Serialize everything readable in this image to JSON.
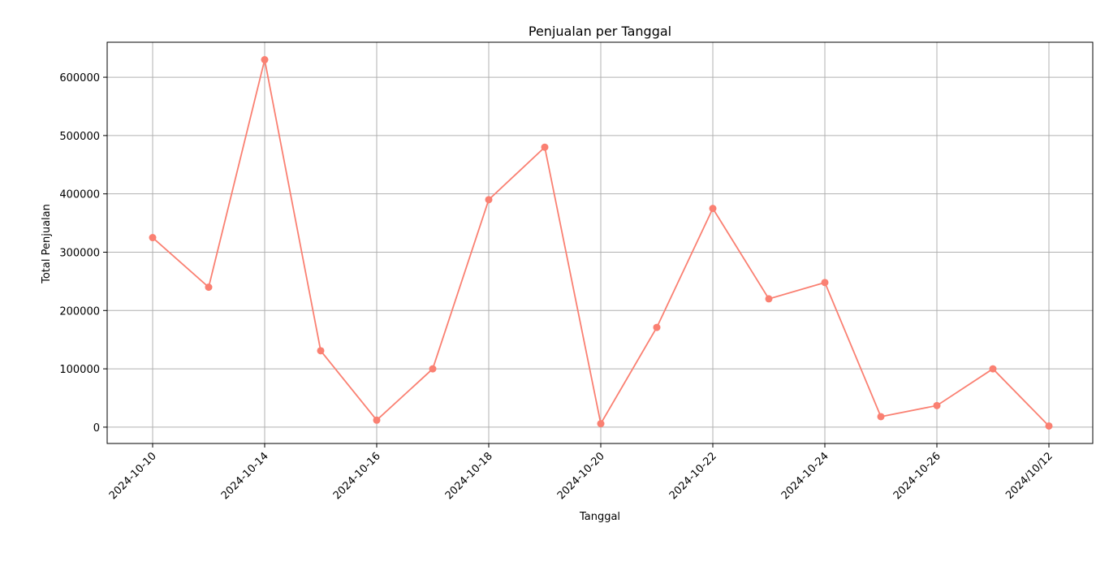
{
  "chart_data": {
    "type": "line",
    "title": "Penjualan per Tanggal",
    "xlabel": "Tanggal",
    "ylabel": "Total Penjualan",
    "x_tick_labels": [
      "2024-10-10",
      "2024-10-14",
      "2024-10-16",
      "2024-10-18",
      "2024-10-20",
      "2024-10-22",
      "2024-10-24",
      "2024-10-26",
      "2024/10/12"
    ],
    "y_ticks": [
      0,
      100000,
      200000,
      300000,
      400000,
      500000,
      600000
    ],
    "ylim": [
      -28000,
      660000
    ],
    "grid": true,
    "series": [
      {
        "color": "#fa8072",
        "values": [
          325000,
          240000,
          630000,
          131000,
          12000,
          100000,
          390000,
          480000,
          6000,
          171000,
          375000,
          220000,
          248000,
          18000,
          37000,
          100000,
          2000
        ]
      }
    ]
  }
}
